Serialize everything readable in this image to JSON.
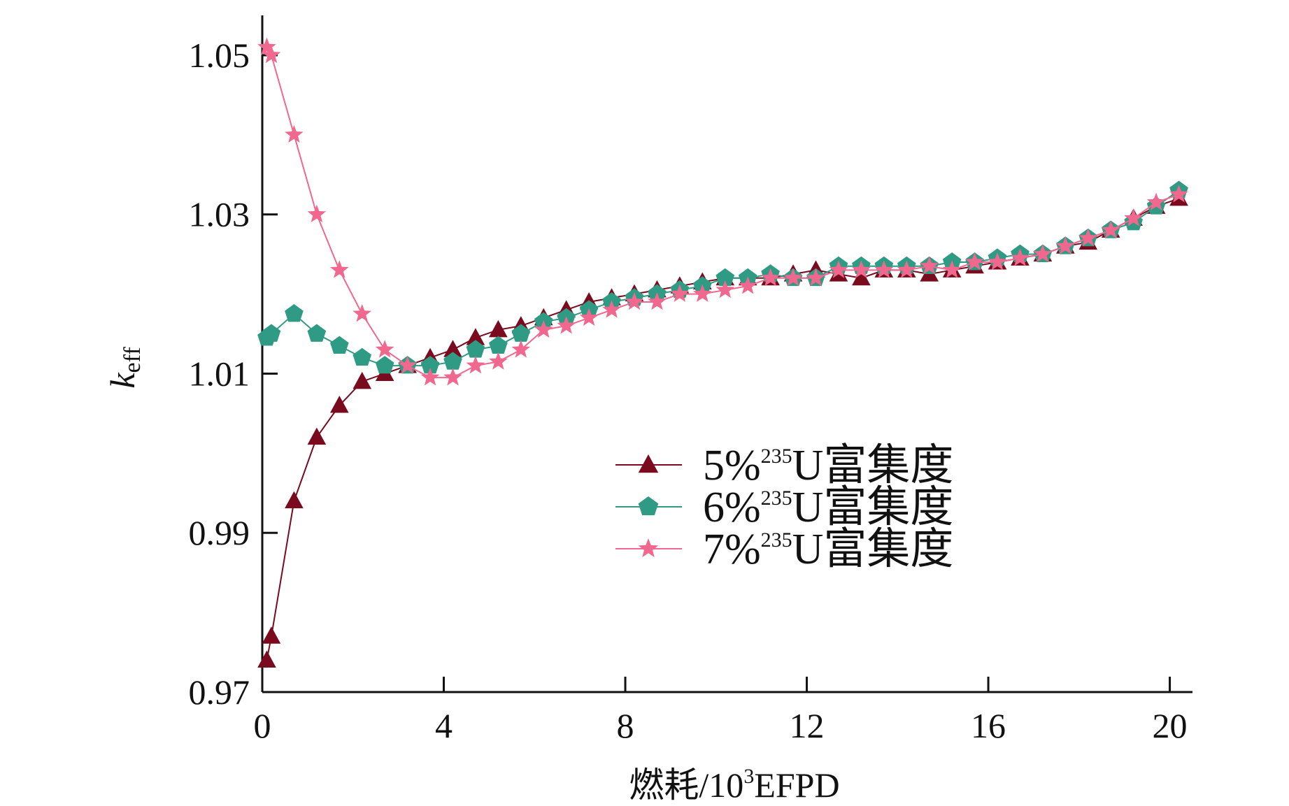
{
  "chart_data": {
    "type": "line",
    "xlabel": {
      "prefix": "燃耗/10",
      "sup": "3",
      "suffix": "EFPD"
    },
    "ylabel": {
      "main": "k",
      "sub": "eff"
    },
    "xlim": [
      0,
      20.5
    ],
    "ylim": [
      0.97,
      1.055
    ],
    "xticks": [
      0,
      4,
      8,
      12,
      16,
      20
    ],
    "yticks": [
      0.97,
      0.99,
      1.01,
      1.03,
      1.05
    ],
    "xtick_labels": [
      "0",
      "4",
      "8",
      "12",
      "16",
      "20"
    ],
    "ytick_labels": [
      "0.97",
      "0.99",
      "1.01",
      "1.03",
      "1.05"
    ],
    "grid": false,
    "legend_position": "center-right",
    "series": [
      {
        "name": "5%235U富集度",
        "label": {
          "pct": "5%",
          "sup": "235",
          "rest": "U富集度"
        },
        "marker": "triangle",
        "color": "#7a0a1e",
        "x": [
          0.1,
          0.2,
          0.7,
          1.2,
          1.7,
          2.2,
          2.7,
          3.2,
          3.7,
          4.2,
          4.7,
          5.2,
          5.7,
          6.2,
          6.7,
          7.2,
          7.7,
          8.2,
          8.7,
          9.2,
          9.7,
          10.2,
          10.7,
          11.2,
          11.7,
          12.2,
          12.7,
          13.2,
          13.7,
          14.2,
          14.7,
          15.2,
          15.7,
          16.2,
          16.7,
          17.2,
          17.7,
          18.2,
          18.7,
          19.2,
          19.7,
          20.2
        ],
        "y": [
          0.974,
          0.977,
          0.994,
          1.002,
          1.006,
          1.009,
          1.01,
          1.011,
          1.012,
          1.013,
          1.0145,
          1.0155,
          1.016,
          1.017,
          1.018,
          1.019,
          1.0195,
          1.02,
          1.0205,
          1.021,
          1.0215,
          1.022,
          1.022,
          1.022,
          1.0225,
          1.023,
          1.0225,
          1.022,
          1.023,
          1.023,
          1.0225,
          1.023,
          1.0235,
          1.024,
          1.0245,
          1.025,
          1.026,
          1.0265,
          1.028,
          1.0295,
          1.031,
          1.032
        ]
      },
      {
        "name": "6%235U富集度",
        "label": {
          "pct": "6%",
          "sup": "235",
          "rest": "U富集度"
        },
        "marker": "pentagon",
        "color": "#2f9b84",
        "x": [
          0.1,
          0.2,
          0.7,
          1.2,
          1.7,
          2.2,
          2.7,
          3.2,
          3.7,
          4.2,
          4.7,
          5.2,
          5.7,
          6.2,
          6.7,
          7.2,
          7.7,
          8.2,
          8.7,
          9.2,
          9.7,
          10.2,
          10.7,
          11.2,
          11.7,
          12.2,
          12.7,
          13.2,
          13.7,
          14.2,
          14.7,
          15.2,
          15.7,
          16.2,
          16.7,
          17.2,
          17.7,
          18.2,
          18.7,
          19.2,
          19.7,
          20.2
        ],
        "y": [
          1.0145,
          1.015,
          1.0175,
          1.015,
          1.0135,
          1.012,
          1.011,
          1.011,
          1.011,
          1.0115,
          1.013,
          1.0135,
          1.015,
          1.0165,
          1.017,
          1.018,
          1.019,
          1.0195,
          1.02,
          1.0205,
          1.021,
          1.022,
          1.022,
          1.0225,
          1.022,
          1.022,
          1.0235,
          1.0235,
          1.0235,
          1.0235,
          1.0235,
          1.024,
          1.024,
          1.0245,
          1.025,
          1.025,
          1.026,
          1.027,
          1.028,
          1.029,
          1.031,
          1.033
        ]
      },
      {
        "name": "7%235U富集度",
        "label": {
          "pct": "7%",
          "sup": "235",
          "rest": "U富集度"
        },
        "marker": "star",
        "color": "#f0688e",
        "x": [
          0.1,
          0.2,
          0.7,
          1.2,
          1.7,
          2.2,
          2.7,
          3.2,
          3.7,
          4.2,
          4.7,
          5.2,
          5.7,
          6.2,
          6.7,
          7.2,
          7.7,
          8.2,
          8.7,
          9.2,
          9.7,
          10.2,
          10.7,
          11.2,
          11.7,
          12.2,
          12.7,
          13.2,
          13.7,
          14.2,
          14.7,
          15.2,
          15.7,
          16.2,
          16.7,
          17.2,
          17.7,
          18.2,
          18.7,
          19.2,
          19.7,
          20.2
        ],
        "y": [
          1.051,
          1.05,
          1.04,
          1.03,
          1.023,
          1.0175,
          1.013,
          1.011,
          1.0095,
          1.0095,
          1.011,
          1.0115,
          1.013,
          1.0155,
          1.016,
          1.017,
          1.018,
          1.019,
          1.019,
          1.02,
          1.02,
          1.0205,
          1.021,
          1.022,
          1.022,
          1.022,
          1.023,
          1.023,
          1.023,
          1.023,
          1.0235,
          1.023,
          1.024,
          1.024,
          1.0245,
          1.025,
          1.026,
          1.027,
          1.028,
          1.0295,
          1.0315,
          1.0325
        ]
      }
    ]
  }
}
